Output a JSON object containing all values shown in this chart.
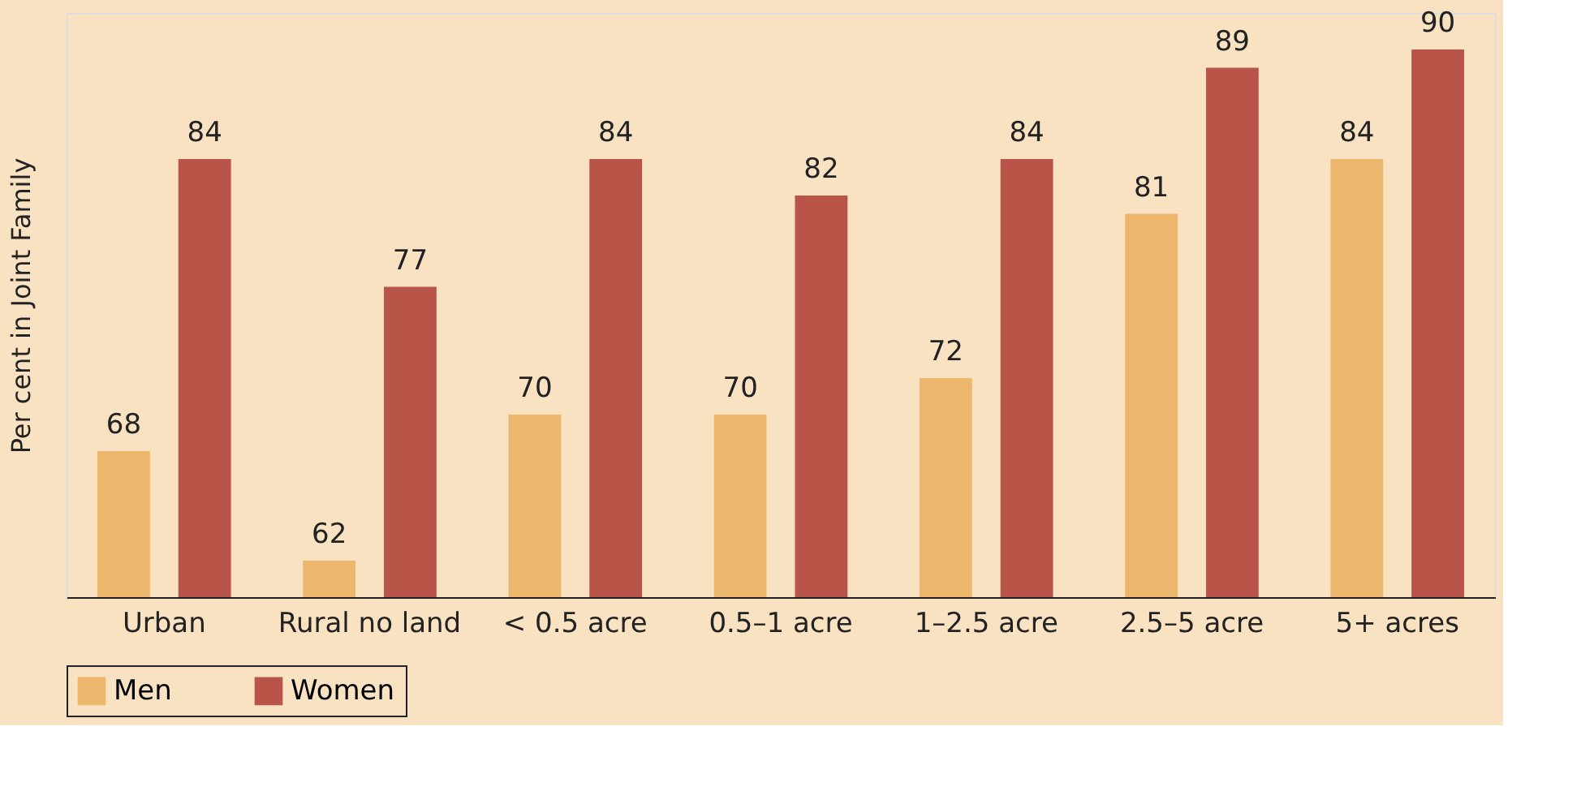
{
  "chart_data": {
    "type": "bar",
    "ylabel": "Per cent in Joint Family",
    "categories": [
      "Urban",
      "Rural no land",
      "< 0.5 acre",
      "0.5–1 acre",
      "1–2.5 acre",
      "2.5–5 acre",
      "5+ acres"
    ],
    "series": [
      {
        "name": "Men",
        "color": "#ecb66c",
        "values": [
          68,
          62,
          70,
          70,
          72,
          81,
          84
        ]
      },
      {
        "name": "Women",
        "color": "#b85448",
        "values": [
          84,
          77,
          84,
          82,
          84,
          89,
          90
        ]
      }
    ],
    "ylim": [
      60,
      92
    ],
    "tick_labels": "x",
    "data_labels": true,
    "legend": "bottom",
    "grid": false
  }
}
